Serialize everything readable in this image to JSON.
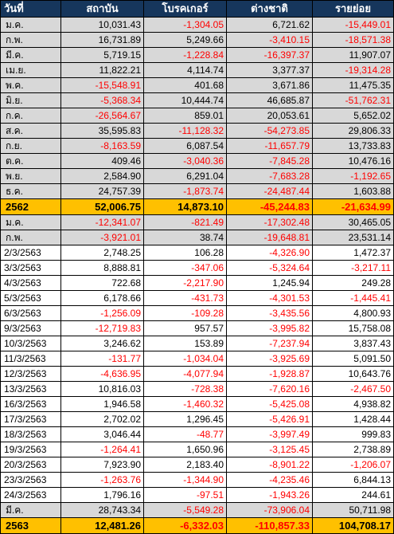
{
  "header": [
    "วันที่",
    "สถาบัน",
    "โบรคเกอร์",
    "ต่างชาติ",
    "รายย่อย"
  ],
  "rows": [
    {
      "type": "month",
      "date": "ม.ค.",
      "v": [
        "10,031.43",
        "-1,304.05",
        "6,721.62",
        "-15,449.01"
      ]
    },
    {
      "type": "month",
      "date": "ก.พ.",
      "v": [
        "16,731.89",
        "5,249.66",
        "-3,410.15",
        "-18,571.38"
      ]
    },
    {
      "type": "month",
      "date": "มี.ค.",
      "v": [
        "5,719.15",
        "-1,228.84",
        "-16,397.37",
        "11,907.07"
      ]
    },
    {
      "type": "month",
      "date": "เม.ย.",
      "v": [
        "11,822.21",
        "4,114.74",
        "3,377.37",
        "-19,314.28"
      ]
    },
    {
      "type": "month",
      "date": "พ.ค.",
      "v": [
        "-15,548.91",
        "401.68",
        "3,671.86",
        "11,475.35"
      ]
    },
    {
      "type": "month",
      "date": "มิ.ย.",
      "v": [
        "-5,368.34",
        "10,444.74",
        "46,685.87",
        "-51,762.31"
      ]
    },
    {
      "type": "month",
      "date": "ก.ค.",
      "v": [
        "-26,564.67",
        "859.01",
        "20,053.61",
        "5,652.02"
      ]
    },
    {
      "type": "month",
      "date": "ส.ค.",
      "v": [
        "35,595.83",
        "-11,128.32",
        "-54,273.85",
        "29,806.33"
      ]
    },
    {
      "type": "month",
      "date": "ก.ย.",
      "v": [
        "-8,163.59",
        "6,087.54",
        "-11,657.79",
        "13,733.83"
      ]
    },
    {
      "type": "month",
      "date": "ต.ค.",
      "v": [
        "409.46",
        "-3,040.36",
        "-7,845.28",
        "10,476.16"
      ]
    },
    {
      "type": "month",
      "date": "พ.ย.",
      "v": [
        "2,584.90",
        "6,291.04",
        "-7,683.28",
        "-1,192.65"
      ]
    },
    {
      "type": "month",
      "date": "ธ.ค.",
      "v": [
        "24,757.39",
        "-1,873.74",
        "-24,487.44",
        "1,603.88"
      ]
    },
    {
      "type": "total",
      "date": "2562",
      "v": [
        "52,006.75",
        "14,873.10",
        "-45,244.83",
        "-21,634.99"
      ]
    },
    {
      "type": "month",
      "date": "ม.ค.",
      "v": [
        "-12,341.07",
        "-821.49",
        "-17,302.48",
        "30,465.05"
      ]
    },
    {
      "type": "month",
      "date": "ก.พ.",
      "v": [
        "-3,921.01",
        "38.74",
        "-19,648.81",
        "23,531.14"
      ]
    },
    {
      "type": "daily",
      "date": "2/3/2563",
      "v": [
        "2,748.25",
        "106.28",
        "-4,326.90",
        "1,472.37"
      ]
    },
    {
      "type": "daily",
      "date": "3/3/2563",
      "v": [
        "8,888.81",
        "-347.06",
        "-5,324.64",
        "-3,217.11"
      ]
    },
    {
      "type": "daily",
      "date": "4/3/2563",
      "v": [
        "722.68",
        "-2,217.90",
        "1,245.94",
        "249.28"
      ]
    },
    {
      "type": "daily",
      "date": "5/3/2563",
      "v": [
        "6,178.66",
        "-431.73",
        "-4,301.53",
        "-1,445.41"
      ]
    },
    {
      "type": "daily",
      "date": "6/3/2563",
      "v": [
        "-1,256.09",
        "-109.28",
        "-3,435.56",
        "4,800.93"
      ]
    },
    {
      "type": "daily",
      "date": "9/3/2563",
      "v": [
        "-12,719.83",
        "957.57",
        "-3,995.82",
        "15,758.08"
      ]
    },
    {
      "type": "daily",
      "date": "10/3/2563",
      "v": [
        "3,246.62",
        "153.89",
        "-7,237.94",
        "3,837.43"
      ]
    },
    {
      "type": "daily",
      "date": "11/3/2563",
      "v": [
        "-131.77",
        "-1,034.04",
        "-3,925.69",
        "5,091.50"
      ]
    },
    {
      "type": "daily",
      "date": "12/3/2563",
      "v": [
        "-4,636.95",
        "-4,077.94",
        "-1,928.87",
        "10,643.76"
      ]
    },
    {
      "type": "daily",
      "date": "13/3/2563",
      "v": [
        "10,816.03",
        "-728.38",
        "-7,620.16",
        "-2,467.50"
      ]
    },
    {
      "type": "daily",
      "date": "16/3/2563",
      "v": [
        "1,946.58",
        "-1,460.32",
        "-5,425.08",
        "4,938.82"
      ]
    },
    {
      "type": "daily",
      "date": "17/3/2563",
      "v": [
        "2,702.02",
        "1,296.45",
        "-5,426.91",
        "1,428.44"
      ]
    },
    {
      "type": "daily",
      "date": "18/3/2563",
      "v": [
        "3,046.44",
        "-48.77",
        "-3,997.49",
        "999.83"
      ]
    },
    {
      "type": "daily",
      "date": "19/3/2563",
      "v": [
        "-1,264.41",
        "1,650.96",
        "-3,125.45",
        "2,738.89"
      ]
    },
    {
      "type": "daily",
      "date": "20/3/2563",
      "v": [
        "7,923.90",
        "2,183.40",
        "-8,901.22",
        "-1,206.07"
      ]
    },
    {
      "type": "daily",
      "date": "23/3/2563",
      "v": [
        "-1,263.76",
        "-1,344.90",
        "-4,235.46",
        "6,844.13"
      ]
    },
    {
      "type": "daily",
      "date": "24/3/2563",
      "v": [
        "1,796.16",
        "-97.51",
        "-1,943.26",
        "244.61"
      ]
    },
    {
      "type": "tmonth",
      "date": "มี.ค.",
      "v": [
        "28,743.34",
        "-5,549.28",
        "-73,906.04",
        "50,711.98"
      ]
    },
    {
      "type": "total",
      "date": "2563",
      "v": [
        "12,481.26",
        "-6,332.03",
        "-110,857.33",
        "104,708.17"
      ]
    }
  ],
  "colors": {
    "header_bg": "#16365c",
    "header_text": "#ffffff",
    "month_bg": "#d8d8d8",
    "total_bg": "#ffc000",
    "negative_text": "#ff0000"
  }
}
